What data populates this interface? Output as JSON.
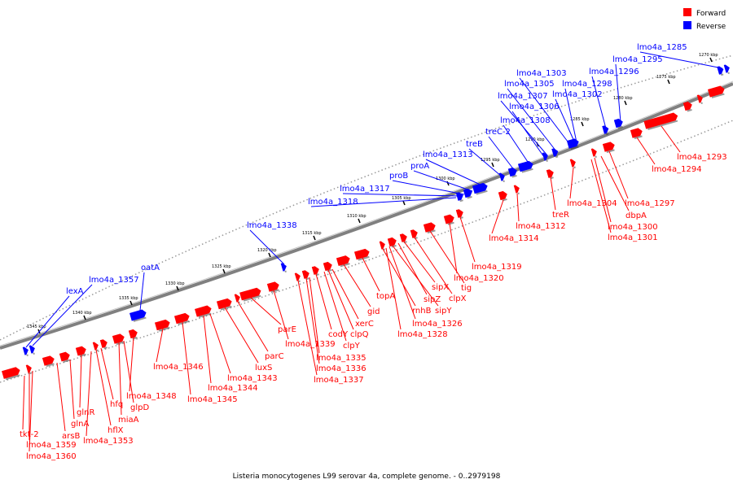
{
  "caption": "Listeria monocytogenes L99 serovar 4a, complete genome. - 0..2979198",
  "legend": {
    "forward_label": "Forward",
    "reverse_label": "Reverse",
    "forward_color": "#ff0000",
    "reverse_color": "#0000ff"
  },
  "colors": {
    "axis": "#808080",
    "tick": "#000000"
  },
  "ticks": [
    "1270 kbp",
    "1275 kbp",
    "1280 kbp",
    "1285 kbp",
    "1290 kbp",
    "1295 kbp",
    "1300 kbp",
    "1305 kbp",
    "1310 kbp",
    "1315 kbp",
    "1320 kbp",
    "1325 kbp",
    "1330 kbp",
    "1335 kbp",
    "1340 kbp",
    "1345 kbp"
  ],
  "reverse_genes": [
    "lmo4a_1285",
    "lmo4a_1295",
    "lmo4a_1296",
    "lmo4a_1298",
    "lmo4a_1302",
    "lmo4a_1303",
    "lmo4a_1305",
    "lmo4a_1307",
    "lmo4a_1306",
    "lmo4a_1308",
    "treC-2",
    "treB",
    "lmo4a_1313",
    "proA",
    "proB",
    "lmo4a_1317",
    "lmo4a_1318",
    "lmo4a_1338",
    "oatA",
    "lmo4a_1357",
    "lexA"
  ],
  "forward_genes": [
    "lmo4a_1293",
    "lmo4a_1294",
    "lmo4a_1297",
    "lmo4a_1304",
    "dbpA",
    "treR",
    "lmo4a_1300",
    "lmo4a_1301",
    "lmo4a_1312",
    "lmo4a_1314",
    "lmo4a_1319",
    "lmo4a_1320",
    "tig",
    "clpX",
    "sipX",
    "sipZ",
    "sipY",
    "topA",
    "rnhB",
    "lmo4a_1326",
    "lmo4a_1328",
    "gid",
    "xerC",
    "clpQ",
    "clpY",
    "codY",
    "lmo4a_1335",
    "lmo4a_1336",
    "lmo4a_1337",
    "lmo4a_1339",
    "parE",
    "parC",
    "luxS",
    "lmo4a_1343",
    "lmo4a_1344",
    "lmo4a_1345",
    "lmo4a_1346",
    "lmo4a_1348",
    "glpD",
    "miaA",
    "hfq",
    "hflX",
    "lmo4a_1353",
    "glnR",
    "glnA",
    "arsB",
    "tkt-2",
    "lmo4a_1359",
    "lmo4a_1360"
  ]
}
